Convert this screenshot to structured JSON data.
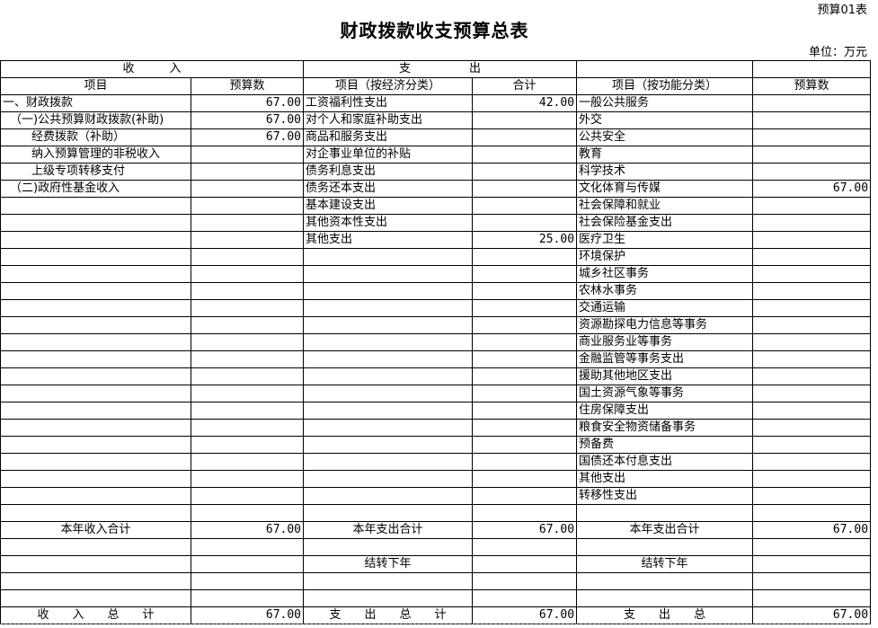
{
  "form_tag": "预算01表",
  "title": "财政拨款收支预算总表",
  "unit": "单位：万元",
  "header": {
    "income": "收　　　入",
    "expense": "支　　　　　出",
    "col_item": "项目",
    "col_budget": "预算数",
    "col_econ": "项目（按经济分类）",
    "col_total": "合计",
    "col_func": "项目（按功能分类）",
    "col_budget2": "预算数"
  },
  "rows": [
    [
      "一、财政拨款",
      "67.00",
      "工资福利性支出",
      "42.00",
      "一般公共服务",
      ""
    ],
    [
      "（一)公共预算财政拨款(补助)",
      "67.00",
      "对个人和家庭补助支出",
      "",
      "外交",
      ""
    ],
    [
      "经费拨款（补助）",
      "67.00",
      "商品和服务支出",
      "",
      "公共安全",
      ""
    ],
    [
      "纳入预算管理的非税收入",
      "",
      "对企事业单位的补贴",
      "",
      "教育",
      ""
    ],
    [
      "上级专项转移支付",
      "",
      "债务利息支出",
      "",
      "科学技术",
      ""
    ],
    [
      "（二)政府性基金收入",
      "",
      "债务还本支出",
      "",
      "文化体育与传媒",
      "67.00"
    ],
    [
      "",
      "",
      "基本建设支出",
      "",
      "社会保障和就业",
      ""
    ],
    [
      "",
      "",
      "其他资本性支出",
      "",
      "社会保险基金支出",
      ""
    ],
    [
      "",
      "",
      "其他支出",
      "25.00",
      "医疗卫生",
      ""
    ],
    [
      "",
      "",
      "",
      "",
      "环境保护",
      ""
    ],
    [
      "",
      "",
      "",
      "",
      "城乡社区事务",
      ""
    ],
    [
      "",
      "",
      "",
      "",
      "农林水事务",
      ""
    ],
    [
      "",
      "",
      "",
      "",
      "交通运输",
      ""
    ],
    [
      "",
      "",
      "",
      "",
      "资源勘探电力信息等事务",
      ""
    ],
    [
      "",
      "",
      "",
      "",
      "商业服务业等事务",
      ""
    ],
    [
      "",
      "",
      "",
      "",
      "金融监管等事务支出",
      ""
    ],
    [
      "",
      "",
      "",
      "",
      "援助其他地区支出",
      ""
    ],
    [
      "",
      "",
      "",
      "",
      "国土资源气象等事务",
      ""
    ],
    [
      "",
      "",
      "",
      "",
      "住房保障支出",
      ""
    ],
    [
      "",
      "",
      "",
      "",
      "粮食安全物资储备事务",
      ""
    ],
    [
      "",
      "",
      "",
      "",
      "预备费",
      ""
    ],
    [
      "",
      "",
      "",
      "",
      "国债还本付息支出",
      ""
    ],
    [
      "",
      "",
      "",
      "",
      "其他支出",
      ""
    ],
    [
      "",
      "",
      "",
      "",
      "转移性支出",
      ""
    ]
  ],
  "summary": {
    "income_year": "本年收入合计",
    "income_year_val": "67.00",
    "expense_year": "本年支出合计",
    "expense_year_val": "67.00",
    "expense_year2": "本年支出合计",
    "expense_year2_val": "67.00",
    "carry": "结转下年",
    "carry2": "结转下年",
    "income_total": "收　　入　　总　　计",
    "income_total_val": "67.00",
    "expense_total": "支　　出　　总　　计",
    "expense_total_val": "67.00",
    "expense_total2": "支　　出　　总",
    "expense_total2_val": "67.00"
  }
}
